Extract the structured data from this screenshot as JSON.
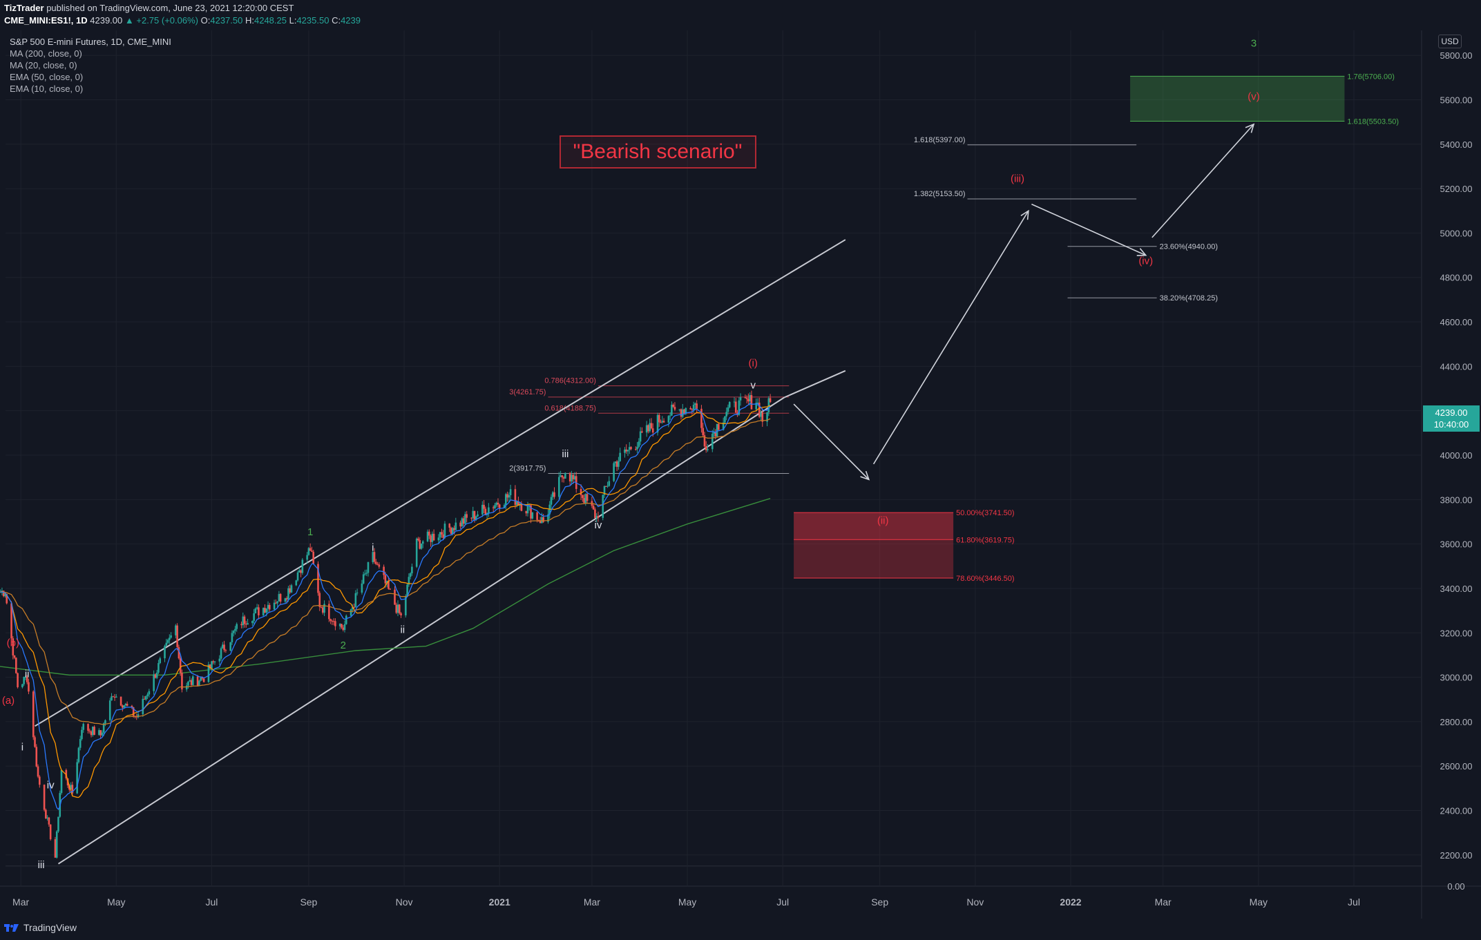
{
  "header": {
    "publisher": "TizTrader",
    "published_text": "published on TradingView.com, June 23, 2021 12:20:00 CEST",
    "symbol": "CME_MINI:ES1!, 1D",
    "last": "4239.00",
    "change": "▲ +2.75 (+0.06%)",
    "open_label": "O:",
    "open": "4237.50",
    "high_label": "H:",
    "high": "4248.25",
    "low_label": "L:",
    "low": "4235.50",
    "close_label": "C:",
    "close": "4239"
  },
  "legend": {
    "title": "S&P 500 E-mini Futures, 1D, CME_MINI",
    "indicators": [
      "MA (200, close, 0)",
      "MA (20, close, 0)",
      "EMA (50, close, 0)",
      "EMA (10, close, 0)"
    ]
  },
  "currency": "USD",
  "price_box": {
    "price": "4239.00",
    "countdown": "10:40:00"
  },
  "footer": {
    "brand": "TradingView"
  },
  "colors": {
    "background": "#131722",
    "up": "#26a69a",
    "down": "#ef5350",
    "ma200": "#2e7d32",
    "ma20": "#ff9800",
    "ema50": "#ffa726",
    "ema10": "#2962ff",
    "wave_red": "#ef5350",
    "wave_green": "#4caf50",
    "channel": "#b2b5be"
  },
  "chart_data": {
    "type": "candlestick",
    "title": "\"Bearish scenario\"",
    "y_axis": {
      "min": 2100,
      "max": 5900,
      "extra_tick": "0.00",
      "ticks": [
        "5800.00",
        "5600.00",
        "5400.00",
        "5200.00",
        "5000.00",
        "4800.00",
        "4600.00",
        "4400.00",
        "4200.00",
        "4000.00",
        "3800.00",
        "3600.00",
        "3400.00",
        "3200.00",
        "3000.00",
        "2800.00",
        "2600.00",
        "2400.00",
        "2200.00"
      ]
    },
    "x_axis": {
      "start": "2020-02-15",
      "end": "2022-08-15",
      "ticks": [
        {
          "label": "Mar",
          "date": "2020-03-01",
          "bold": false
        },
        {
          "label": "May",
          "date": "2020-05-01",
          "bold": false
        },
        {
          "label": "Jul",
          "date": "2020-07-01",
          "bold": false
        },
        {
          "label": "Sep",
          "date": "2020-09-01",
          "bold": false
        },
        {
          "label": "Nov",
          "date": "2020-11-01",
          "bold": false
        },
        {
          "label": "2021",
          "date": "2021-01-01",
          "bold": true
        },
        {
          "label": "Mar",
          "date": "2021-03-01",
          "bold": false
        },
        {
          "label": "May",
          "date": "2021-05-01",
          "bold": false
        },
        {
          "label": "Jul",
          "date": "2021-07-01",
          "bold": false
        },
        {
          "label": "Sep",
          "date": "2021-09-01",
          "bold": false
        },
        {
          "label": "Nov",
          "date": "2021-11-01",
          "bold": false
        },
        {
          "label": "2022",
          "date": "2022-01-01",
          "bold": true
        },
        {
          "label": "Mar",
          "date": "2022-03-01",
          "bold": false
        },
        {
          "label": "May",
          "date": "2022-05-01",
          "bold": false
        },
        {
          "label": "Jul",
          "date": "2022-07-01",
          "bold": false
        }
      ]
    },
    "price_path": [
      [
        "2020-02-15",
        3380
      ],
      [
        "2020-02-20",
        3390
      ],
      [
        "2020-02-28",
        2960
      ],
      [
        "2020-03-05",
        3000
      ],
      [
        "2020-03-12",
        2550
      ],
      [
        "2020-03-18",
        2350
      ],
      [
        "2020-03-23",
        2190
      ],
      [
        "2020-03-27",
        2580
      ],
      [
        "2020-04-03",
        2480
      ],
      [
        "2020-04-09",
        2780
      ],
      [
        "2020-04-21",
        2740
      ],
      [
        "2020-04-29",
        2930
      ],
      [
        "2020-05-14",
        2820
      ],
      [
        "2020-06-08",
        3230
      ],
      [
        "2020-06-12",
        2960
      ],
      [
        "2020-06-26",
        3000
      ],
      [
        "2020-07-20",
        3250
      ],
      [
        "2020-08-18",
        3380
      ],
      [
        "2020-09-02",
        3580
      ],
      [
        "2020-09-08",
        3330
      ],
      [
        "2020-09-23",
        3220
      ],
      [
        "2020-10-12",
        3540
      ],
      [
        "2020-10-30",
        3270
      ],
      [
        "2020-11-09",
        3600
      ],
      [
        "2020-12-08",
        3700
      ],
      [
        "2021-01-08",
        3820
      ],
      [
        "2021-01-29",
        3700
      ],
      [
        "2021-02-12",
        3940
      ],
      [
        "2021-03-04",
        3720
      ],
      [
        "2021-03-15",
        3960
      ],
      [
        "2021-04-16",
        4180
      ],
      [
        "2021-05-07",
        4230
      ],
      [
        "2021-05-12",
        4040
      ],
      [
        "2021-05-26",
        4200
      ],
      [
        "2021-06-14",
        4250
      ],
      [
        "2021-06-18",
        4160
      ],
      [
        "2021-06-23",
        4239
      ]
    ],
    "ma200": [
      [
        "2020-02-15",
        3050
      ],
      [
        "2020-04-01",
        3010
      ],
      [
        "2020-06-01",
        3010
      ],
      [
        "2020-08-01",
        3060
      ],
      [
        "2020-10-01",
        3120
      ],
      [
        "2020-11-15",
        3140
      ],
      [
        "2020-12-15",
        3220
      ],
      [
        "2021-02-01",
        3420
      ],
      [
        "2021-03-15",
        3570
      ],
      [
        "2021-05-01",
        3690
      ],
      [
        "2021-06-23",
        3805
      ]
    ],
    "channel": {
      "upper": [
        [
          "2020-03-10",
          2780
        ],
        [
          "2021-08-10",
          4970
        ]
      ],
      "lower": [
        [
          "2020-03-25",
          2160
        ],
        [
          "2021-07-02",
          4260
        ]
      ],
      "mid": [
        [
          "2021-07-02",
          4260
        ],
        [
          "2021-08-10",
          4380
        ]
      ]
    },
    "wave_labels": [
      {
        "text": "(b)",
        "date": "2020-02-25",
        "price": 3140,
        "color": "red"
      },
      {
        "text": "(a)",
        "date": "2020-02-22",
        "price": 2880,
        "color": "red"
      },
      {
        "text": "ii",
        "date": "2020-03-05",
        "price": 3000,
        "color": "white"
      },
      {
        "text": "i",
        "date": "2020-03-02",
        "price": 2670,
        "color": "white"
      },
      {
        "text": "iv",
        "date": "2020-03-20",
        "price": 2500,
        "color": "white"
      },
      {
        "text": "iii",
        "date": "2020-03-14",
        "price": 2140,
        "color": "white"
      },
      {
        "text": "1",
        "date": "2020-09-02",
        "price": 3640,
        "color": "green"
      },
      {
        "text": "i",
        "date": "2020-10-12",
        "price": 3570,
        "color": "white"
      },
      {
        "text": "2",
        "date": "2020-09-23",
        "price": 3130,
        "color": "green"
      },
      {
        "text": "ii",
        "date": "2020-10-31",
        "price": 3200,
        "color": "white"
      },
      {
        "text": "iii",
        "date": "2021-02-12",
        "price": 3990,
        "color": "white"
      },
      {
        "text": "iv",
        "date": "2021-03-05",
        "price": 3670,
        "color": "white"
      },
      {
        "text": "v",
        "date": "2021-06-12",
        "price": 4300,
        "color": "white"
      },
      {
        "text": "(i)",
        "date": "2021-06-12",
        "price": 4400,
        "color": "red"
      },
      {
        "text": "(ii)",
        "date": "2021-09-03",
        "price": 3690,
        "color": "red"
      },
      {
        "text": "(iii)",
        "date": "2021-11-28",
        "price": 5230,
        "color": "red"
      },
      {
        "text": "(iv)",
        "date": "2022-02-18",
        "price": 4860,
        "color": "red"
      },
      {
        "text": "(v)",
        "date": "2022-04-28",
        "price": 5600,
        "color": "red"
      },
      {
        "text": "3",
        "date": "2022-04-28",
        "price": 5840,
        "color": "green"
      }
    ],
    "fib_levels": [
      {
        "text": "0.786(4312.00)",
        "price": 4312,
        "from": "2021-03-05",
        "to": "2021-07-05",
        "color": "red",
        "label_side": "left"
      },
      {
        "text": "3(4261.75)",
        "price": 4261.75,
        "from": "2021-02-01",
        "to": "2021-07-05",
        "color": "red",
        "label_side": "left"
      },
      {
        "text": "0.618(4188.75)",
        "price": 4188.75,
        "from": "2021-03-05",
        "to": "2021-07-05",
        "color": "red",
        "label_side": "left"
      },
      {
        "text": "2(3917.75)",
        "price": 3917.75,
        "from": "2021-02-01",
        "to": "2021-07-05",
        "color": "gray",
        "label_side": "left"
      },
      {
        "text": "1.618(5397.00)",
        "price": 5397,
        "from": "2021-10-27",
        "to": "2022-02-12",
        "color": "gray",
        "label_side": "left"
      },
      {
        "text": "1.382(5153.50)",
        "price": 5153.5,
        "from": "2021-10-27",
        "to": "2022-02-12",
        "color": "gray",
        "label_side": "left"
      },
      {
        "text": "23.60%(4940.00)",
        "price": 4940,
        "from": "2021-12-30",
        "to": "2022-02-25",
        "color": "gray",
        "label_side": "right"
      },
      {
        "text": "38.20%(4708.25)",
        "price": 4708.25,
        "from": "2021-12-30",
        "to": "2022-02-25",
        "color": "gray",
        "label_side": "right"
      }
    ],
    "zones": [
      {
        "name": "retracement",
        "from": "2021-07-08",
        "to": "2021-10-18",
        "top": 3741.5,
        "bottom": 3446.5,
        "color": "red",
        "levels": [
          {
            "text": "50.00%(3741.50)",
            "price": 3741.5
          },
          {
            "text": "61.80%(3619.75)",
            "price": 3619.75
          },
          {
            "text": "78.60%(3446.50)",
            "price": 3446.5
          }
        ]
      },
      {
        "name": "target",
        "from": "2022-02-08",
        "to": "2022-06-25",
        "top": 5706,
        "bottom": 5503.5,
        "color": "green",
        "levels": [
          {
            "text": "1.76(5706.00)",
            "price": 5706
          },
          {
            "text": "1.618(5503.50)",
            "price": 5503.5
          }
        ]
      }
    ],
    "arrows": [
      [
        [
          "2021-07-08",
          4230
        ],
        [
          "2021-08-25",
          3890
        ]
      ],
      [
        [
          "2021-08-28",
          3960
        ],
        [
          "2021-12-05",
          5100
        ]
      ],
      [
        [
          "2021-12-07",
          5130
        ],
        [
          "2022-02-18",
          4900
        ]
      ],
      [
        [
          "2022-02-22",
          4980
        ],
        [
          "2022-04-28",
          5490
        ]
      ]
    ]
  }
}
